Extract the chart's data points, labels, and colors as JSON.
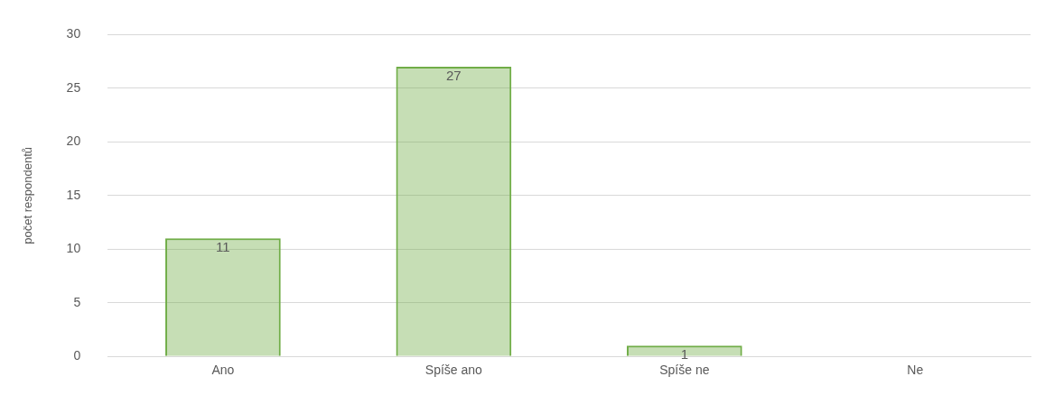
{
  "chart_data": {
    "type": "bar",
    "ylabel": "počet respondentů",
    "categories": [
      "Ano",
      "Spíše ano",
      "Spíše ne",
      "Ne"
    ],
    "values": [
      11,
      27,
      1,
      0
    ],
    "value_labels": [
      "11",
      "27",
      "1",
      null
    ],
    "color": "#70ad47",
    "ylim": [
      0,
      30
    ],
    "yticks": [
      0,
      5,
      10,
      15,
      20,
      25,
      30
    ],
    "grid": "y"
  }
}
